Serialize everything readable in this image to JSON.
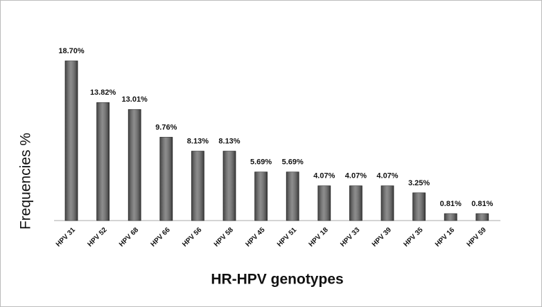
{
  "chart_data": {
    "type": "bar",
    "ylabel": "Frequencies %",
    "xlabel": "HR-HPV genotypes",
    "categories": [
      "HPV 31",
      "HPV 52",
      "HPV 68",
      "HPV 66",
      "HPV 56",
      "HPV 58",
      "HPV 45",
      "HPV 51",
      "HPV 18",
      "HPV 33",
      "HPV 39",
      "HPV 35",
      "HPV 16",
      "HPV 59"
    ],
    "values": [
      18.7,
      13.82,
      13.01,
      9.76,
      8.13,
      8.13,
      5.69,
      5.69,
      4.07,
      4.07,
      4.07,
      3.25,
      0.81,
      0.81
    ],
    "value_labels": [
      "18.70%",
      "13.82%",
      "13.01%",
      "9.76%",
      "8.13%",
      "8.13%",
      "5.69%",
      "5.69%",
      "4.07%",
      "4.07%",
      "4.07%",
      "3.25%",
      "0.81%",
      "0.81%"
    ],
    "color": "#666666",
    "ylim": [
      0,
      20
    ]
  }
}
